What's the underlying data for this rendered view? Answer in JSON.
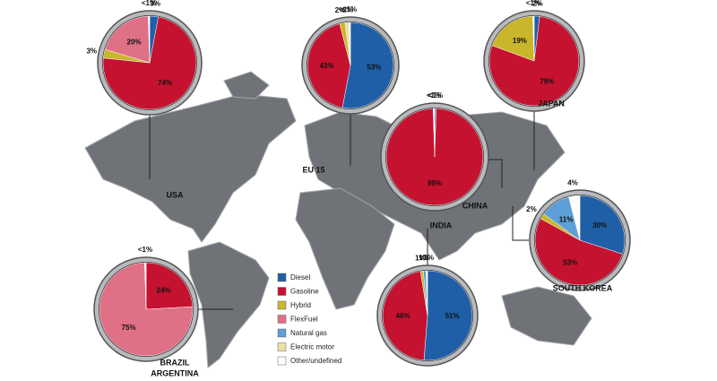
{
  "chart_data": [
    {
      "type": "pie",
      "title": "USA",
      "values": [
        3,
        74,
        3,
        20,
        null,
        null,
        0.5
      ],
      "value_labels": [
        "3%",
        "74%",
        "3%",
        "20%",
        null,
        null,
        "<1%"
      ]
    },
    {
      "type": "pie",
      "title": "EU 15",
      "values": [
        53,
        43,
        2,
        null,
        null,
        1.5,
        0.5
      ],
      "value_labels": [
        "53%",
        "43%",
        "2%",
        null,
        null,
        "<2%",
        "<1%"
      ]
    },
    {
      "type": "pie",
      "title": "JAPAN",
      "values": [
        2,
        79,
        19,
        null,
        null,
        null,
        0.5
      ],
      "value_labels": [
        "2%",
        "79%",
        "19%",
        null,
        null,
        null,
        "<1%"
      ]
    },
    {
      "type": "pie",
      "title": "CHINA",
      "values": [
        0.5,
        99,
        null,
        null,
        null,
        null,
        0.5
      ],
      "value_labels": [
        "<1%",
        "99%",
        null,
        null,
        null,
        null,
        "<1%"
      ]
    },
    {
      "type": "pie",
      "title": "INDIA",
      "values": [
        51,
        46,
        1,
        null,
        1,
        null,
        0.5
      ],
      "value_labels": [
        "51%",
        "46%",
        "1%",
        null,
        "1%",
        null,
        "<1%"
      ]
    },
    {
      "type": "pie",
      "title": "SOUTH KOREA",
      "values": [
        30,
        53,
        2,
        null,
        11,
        null,
        4
      ],
      "value_labels": [
        "30%",
        "53%",
        "2%",
        null,
        "11%",
        null,
        "4%"
      ]
    },
    {
      "type": "pie",
      "title": [
        "BRAZIL",
        "ARGENTINA"
      ],
      "values": [
        null,
        24,
        null,
        75,
        null,
        null,
        0.5
      ],
      "value_labels": [
        null,
        "24%",
        null,
        "75%",
        null,
        null,
        "<1%"
      ]
    }
  ],
  "legend": {
    "categories": [
      "Diesel",
      "Gasoline",
      "Hybrid",
      "FlexFuel",
      "Natural gas",
      "Electric motor",
      "Other/undefined"
    ],
    "colors": [
      "#1f5fa8",
      "#c41230",
      "#c9b62b",
      "#e07085",
      "#5d9fd6",
      "#e9e1a6",
      "#ffffff"
    ]
  }
}
